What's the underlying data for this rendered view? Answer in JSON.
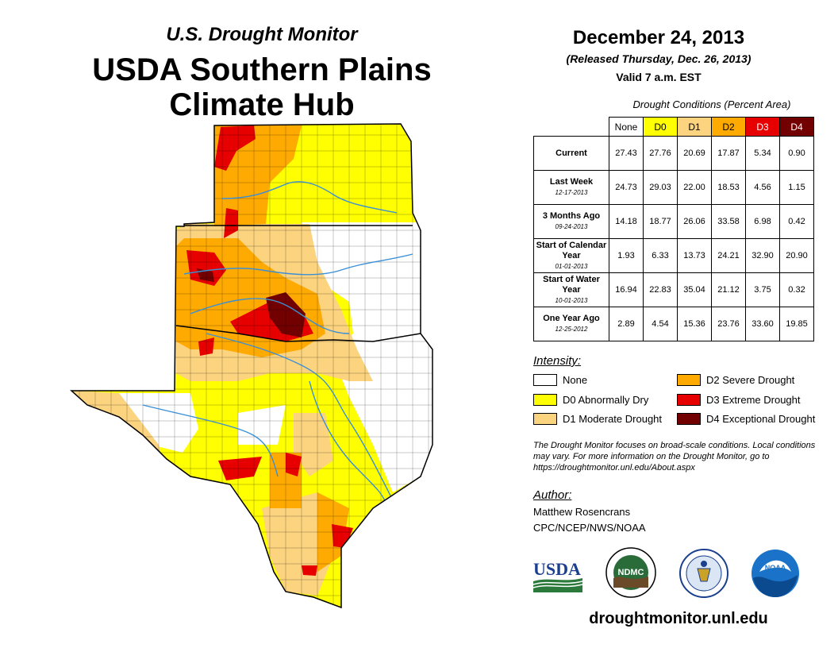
{
  "header": {
    "subtitle": "U.S. Drought Monitor",
    "title_line1": "USDA Southern Plains",
    "title_line2": "Climate Hub"
  },
  "release": {
    "date": "December 24, 2013",
    "released": "(Released Thursday, Dec. 26, 2013)",
    "valid": "Valid 7 a.m. EST"
  },
  "table": {
    "caption": "Drought Conditions (Percent Area)",
    "columns": [
      "None",
      "D0",
      "D1",
      "D2",
      "D3",
      "D4"
    ],
    "rows": [
      {
        "label": "Current",
        "date": "",
        "values": [
          "27.43",
          "27.76",
          "20.69",
          "17.87",
          "5.34",
          "0.90"
        ]
      },
      {
        "label": "Last Week",
        "date": "12-17-2013",
        "values": [
          "24.73",
          "29.03",
          "22.00",
          "18.53",
          "4.56",
          "1.15"
        ]
      },
      {
        "label": "3 Months Ago",
        "date": "09-24-2013",
        "values": [
          "14.18",
          "18.77",
          "26.06",
          "33.58",
          "6.98",
          "0.42"
        ]
      },
      {
        "label": "Start of Calendar Year",
        "date": "01-01-2013",
        "values": [
          "1.93",
          "6.33",
          "13.73",
          "24.21",
          "32.90",
          "20.90"
        ]
      },
      {
        "label": "Start of Water Year",
        "date": "10-01-2013",
        "values": [
          "16.94",
          "22.83",
          "35.04",
          "21.12",
          "3.75",
          "0.32"
        ]
      },
      {
        "label": "One Year Ago",
        "date": "12-25-2012",
        "values": [
          "2.89",
          "4.54",
          "15.36",
          "23.76",
          "33.60",
          "19.85"
        ]
      }
    ]
  },
  "legend": {
    "title": "Intensity:",
    "items": [
      {
        "label": "None",
        "color": "#ffffff"
      },
      {
        "label": "D0 Abnormally Dry",
        "color": "#ffff00"
      },
      {
        "label": "D1 Moderate Drought",
        "color": "#fcd37f"
      },
      {
        "label": "D2 Severe Drought",
        "color": "#ffaa00"
      },
      {
        "label": "D3 Extreme Drought",
        "color": "#e60000"
      },
      {
        "label": "D4 Exceptional Drought",
        "color": "#730000"
      }
    ]
  },
  "note": "The Drought Monitor focuses on broad-scale conditions. Local conditions may vary. For more information on the Drought Monitor, go to https://droughtmonitor.unl.edu/About.aspx",
  "author": {
    "title": "Author:",
    "name": "Matthew Rosencrans",
    "org": "CPC/NCEP/NWS/NOAA"
  },
  "logos": {
    "usda": "USDA",
    "ndmc": "NDMC",
    "noaa": "NOAA"
  },
  "footer_url": "droughtmonitor.unl.edu",
  "colors": {
    "none": "#ffffff",
    "d0": "#ffff00",
    "d1": "#fcd37f",
    "d2": "#ffaa00",
    "d3": "#e60000",
    "d4": "#730000",
    "river": "#3a8fd6"
  }
}
